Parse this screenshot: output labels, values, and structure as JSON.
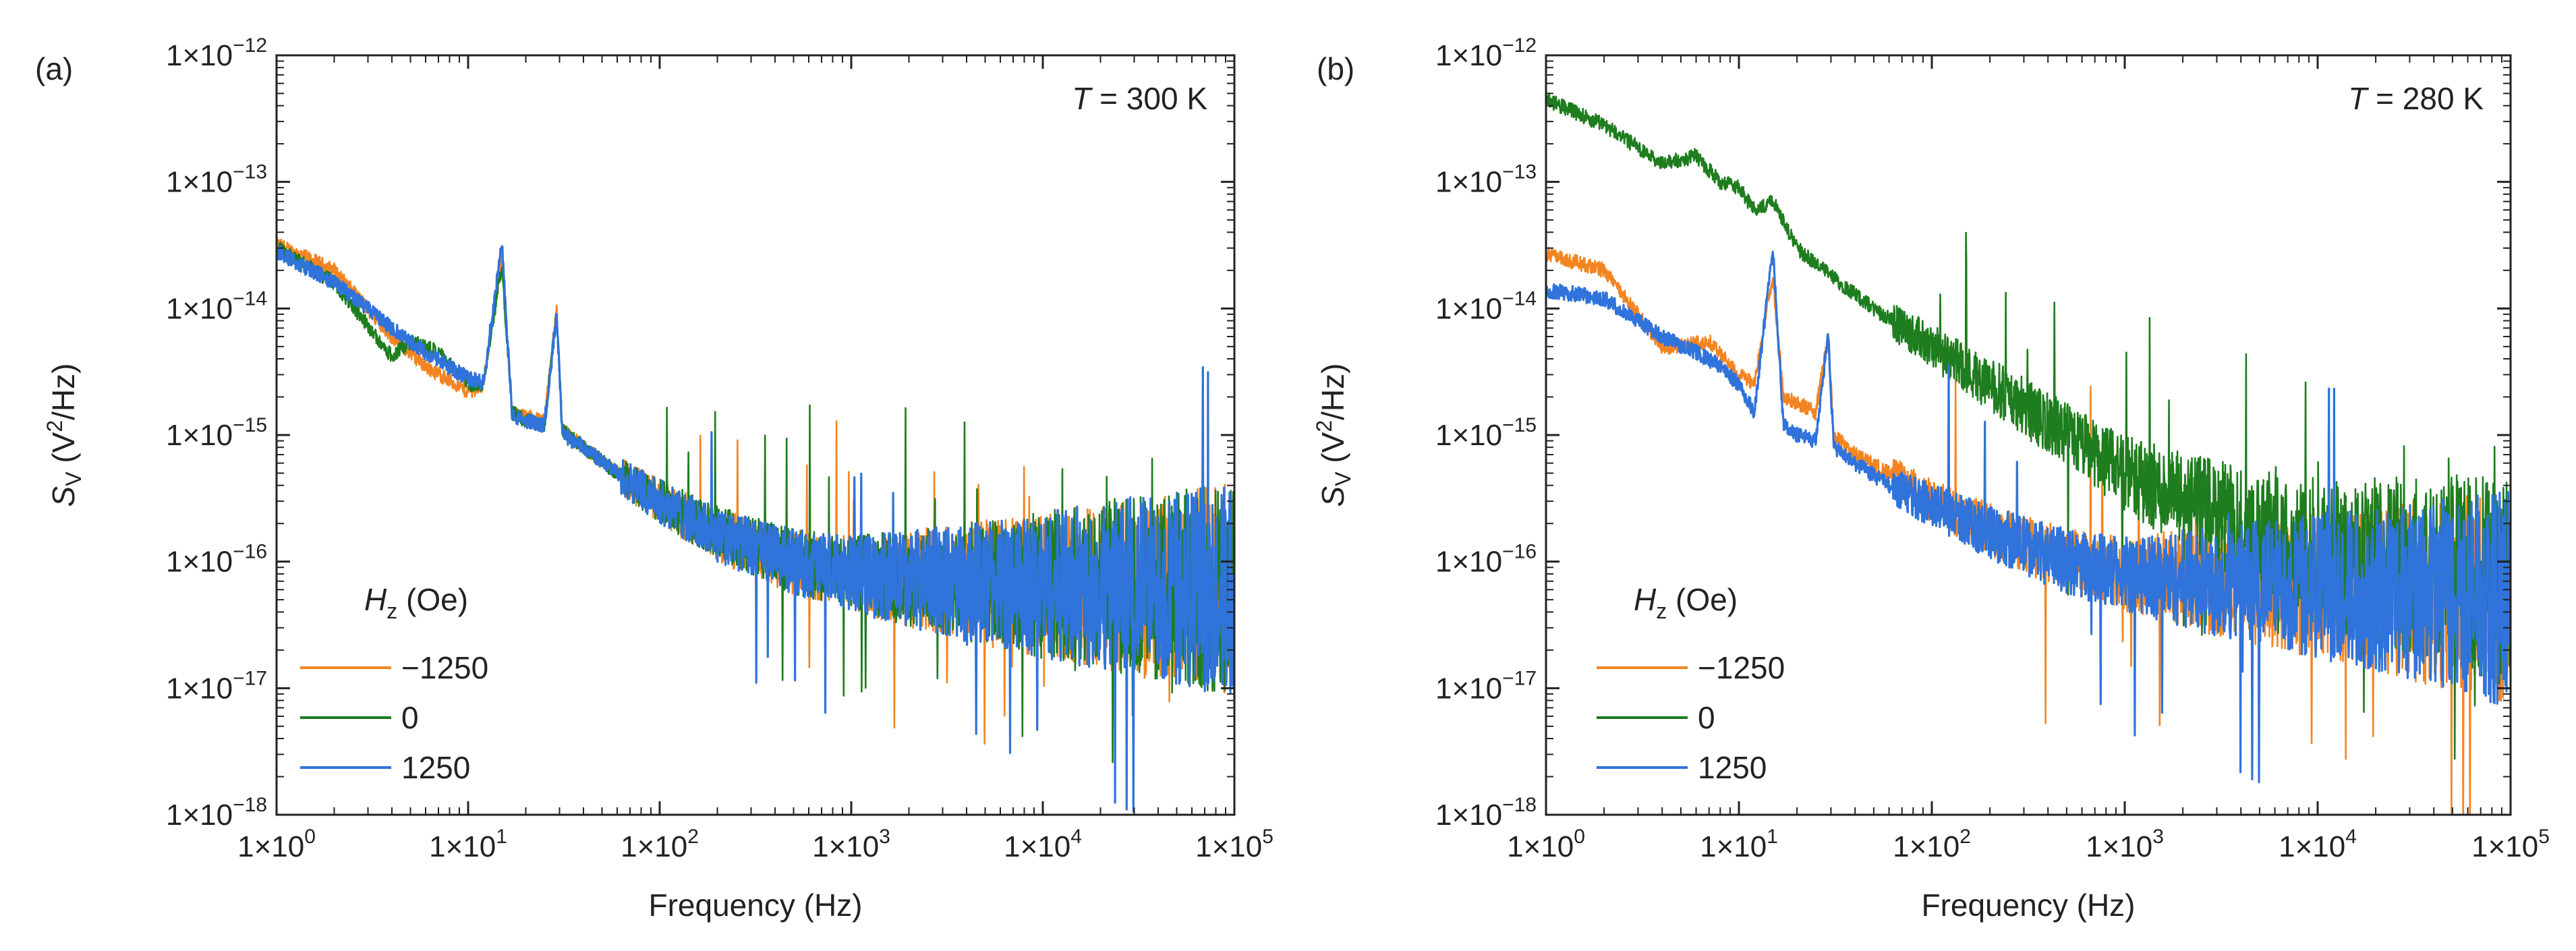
{
  "figure": {
    "panel_labels": [
      "(a)",
      "(b)"
    ]
  },
  "colors": {
    "s-1250": "#f28522",
    "s0": "#1e7d1e",
    "s1250": "#2f73db",
    "axis": "#222222"
  },
  "chart_data": [
    {
      "type": "line",
      "panel": "(a)",
      "xscale": "log",
      "yscale": "log",
      "xlim": [
        1,
        100000
      ],
      "ylim": [
        1e-18,
        1e-12
      ],
      "xlabel": "Frequency (Hz)",
      "ylabel_main": "S",
      "ylabel_sub": "V",
      "ylabel_units_pre": " (V",
      "ylabel_units_sup": "2",
      "ylabel_units_post": "/Hz)",
      "xticks": [
        "1×10",
        "1×10",
        "1×10",
        "1×10",
        "1×10",
        "1×10"
      ],
      "xtick_exps": [
        "0",
        "1",
        "2",
        "3",
        "4",
        "5"
      ],
      "yticks": [
        "1×10",
        "1×10",
        "1×10",
        "1×10",
        "1×10",
        "1×10",
        "1×10"
      ],
      "ytick_exps": [
        "−18",
        "−17",
        "−16",
        "−15",
        "−14",
        "−13",
        "−12"
      ],
      "annotation": {
        "var": "T",
        "text": " = 300 K"
      },
      "legend_title": {
        "var": "H",
        "sub": "z",
        "rest": " (Oe)"
      },
      "legend_position": "bottom-left",
      "series": [
        {
          "name": "−1250",
          "color": "#f28522",
          "x": [
            1,
            2,
            4,
            6,
            10,
            12,
            15,
            17,
            20,
            25,
            29,
            31,
            40,
            60,
            100,
            200,
            500,
            1000,
            3000,
            10000,
            30000,
            100000
          ],
          "y": [
            3.2e-14,
            2e-14,
            6e-15,
            3.5e-15,
            2.2e-15,
            2.5e-15,
            2.5e-14,
            1.5e-15,
            1.4e-15,
            1.3e-15,
            1e-14,
            1.1e-15,
            8e-16,
            5e-16,
            3e-16,
            1.6e-16,
            1e-16,
            8e-17,
            7e-17,
            6.5e-17,
            6.5e-17,
            6e-17
          ]
        },
        {
          "name": "0",
          "color": "#1e7d1e",
          "x": [
            1,
            2,
            4,
            5,
            7,
            10,
            12,
            15,
            17,
            20,
            25,
            29,
            31,
            40,
            60,
            100,
            200,
            500,
            1000,
            3000,
            10000,
            30000,
            100000
          ],
          "y": [
            3e-14,
            1.6e-14,
            4.2e-15,
            5.5e-15,
            4.5e-15,
            2.6e-15,
            2.4e-15,
            2.2e-14,
            1.5e-15,
            1.3e-15,
            1.2e-15,
            9e-15,
            1.1e-15,
            8e-16,
            5e-16,
            3e-16,
            1.7e-16,
            1e-16,
            8e-17,
            7e-17,
            6.5e-17,
            6.5e-17,
            6e-17
          ]
        },
        {
          "name": "1250",
          "color": "#2f73db",
          "x": [
            1,
            2,
            4,
            6,
            10,
            12,
            15,
            17,
            20,
            25,
            29,
            31,
            40,
            60,
            100,
            200,
            500,
            1000,
            3000,
            10000,
            30000,
            100000
          ],
          "y": [
            2.8e-14,
            1.6e-14,
            7e-15,
            4.5e-15,
            2.8e-15,
            2.6e-15,
            3.2e-14,
            1.4e-15,
            1.3e-15,
            1.2e-15,
            9e-15,
            1e-15,
            8e-16,
            5e-16,
            3e-16,
            1.6e-16,
            1e-16,
            8e-17,
            7e-17,
            6.5e-17,
            6.5e-17,
            6e-17
          ]
        }
      ]
    },
    {
      "type": "line",
      "panel": "(b)",
      "xscale": "log",
      "yscale": "log",
      "xlim": [
        1,
        100000
      ],
      "ylim": [
        1e-18,
        1e-12
      ],
      "xlabel": "Frequency (Hz)",
      "ylabel_main": "S",
      "ylabel_sub": "V",
      "ylabel_units_pre": " (V",
      "ylabel_units_sup": "2",
      "ylabel_units_post": "/Hz)",
      "xticks": [
        "1×10",
        "1×10",
        "1×10",
        "1×10",
        "1×10",
        "1×10"
      ],
      "xtick_exps": [
        "0",
        "1",
        "2",
        "3",
        "4",
        "5"
      ],
      "yticks": [
        "1×10",
        "1×10",
        "1×10",
        "1×10",
        "1×10",
        "1×10",
        "1×10"
      ],
      "ytick_exps": [
        "−18",
        "−17",
        "−16",
        "−15",
        "−14",
        "−13",
        "−12"
      ],
      "annotation": {
        "var": "T",
        "text": " = 280 K"
      },
      "legend_title": {
        "var": "H",
        "sub": "z",
        "rest": " (Oe)"
      },
      "legend_position": "bottom-left",
      "series": [
        {
          "name": "−1250",
          "color": "#f28522",
          "x": [
            1,
            2,
            4,
            5,
            7,
            10,
            12,
            15,
            17,
            20,
            25,
            29,
            31,
            40,
            60,
            100,
            200,
            500,
            1000,
            3000,
            10000,
            30000,
            100000
          ],
          "y": [
            2.7e-14,
            2e-14,
            5e-15,
            5e-15,
            5.5e-15,
            3e-15,
            2.5e-15,
            1.8e-14,
            2e-15,
            1.8e-15,
            1.5e-15,
            6e-15,
            1e-15,
            7e-16,
            5e-16,
            3e-16,
            1.8e-16,
            1e-16,
            8e-17,
            7e-17,
            6.5e-17,
            6e-17,
            5e-17
          ]
        },
        {
          "name": "0",
          "color": "#1e7d1e",
          "x": [
            1,
            2,
            4,
            6,
            8,
            10,
            12,
            15,
            20,
            30,
            50,
            100,
            200,
            500,
            1000,
            2000,
            5000,
            10000,
            30000,
            100000
          ],
          "y": [
            4.5e-13,
            2.8e-13,
            1.4e-13,
            1.6e-13,
            1e-13,
            9e-14,
            6e-14,
            7e-14,
            3e-14,
            1.8e-14,
            1e-14,
            5e-15,
            2.5e-15,
            1e-15,
            5e-16,
            3e-16,
            1.7e-16,
            1.2e-16,
            9e-17,
            7e-17
          ]
        },
        {
          "name": "1250",
          "color": "#2f73db",
          "x": [
            1,
            2,
            4,
            6,
            8,
            10,
            12,
            15,
            17,
            20,
            25,
            29,
            31,
            40,
            60,
            100,
            200,
            500,
            1000,
            3000,
            10000,
            30000,
            100000
          ],
          "y": [
            1.4e-14,
            1.2e-14,
            6e-15,
            4.5e-15,
            3.5e-15,
            2.5e-15,
            1.5e-15,
            3e-14,
            1.2e-15,
            1e-15,
            9e-16,
            6.5e-15,
            8e-16,
            6e-16,
            4e-16,
            2.8e-16,
            1.7e-16,
            1e-16,
            8e-17,
            7e-17,
            6.5e-17,
            6e-17,
            5e-17
          ]
        }
      ]
    }
  ]
}
